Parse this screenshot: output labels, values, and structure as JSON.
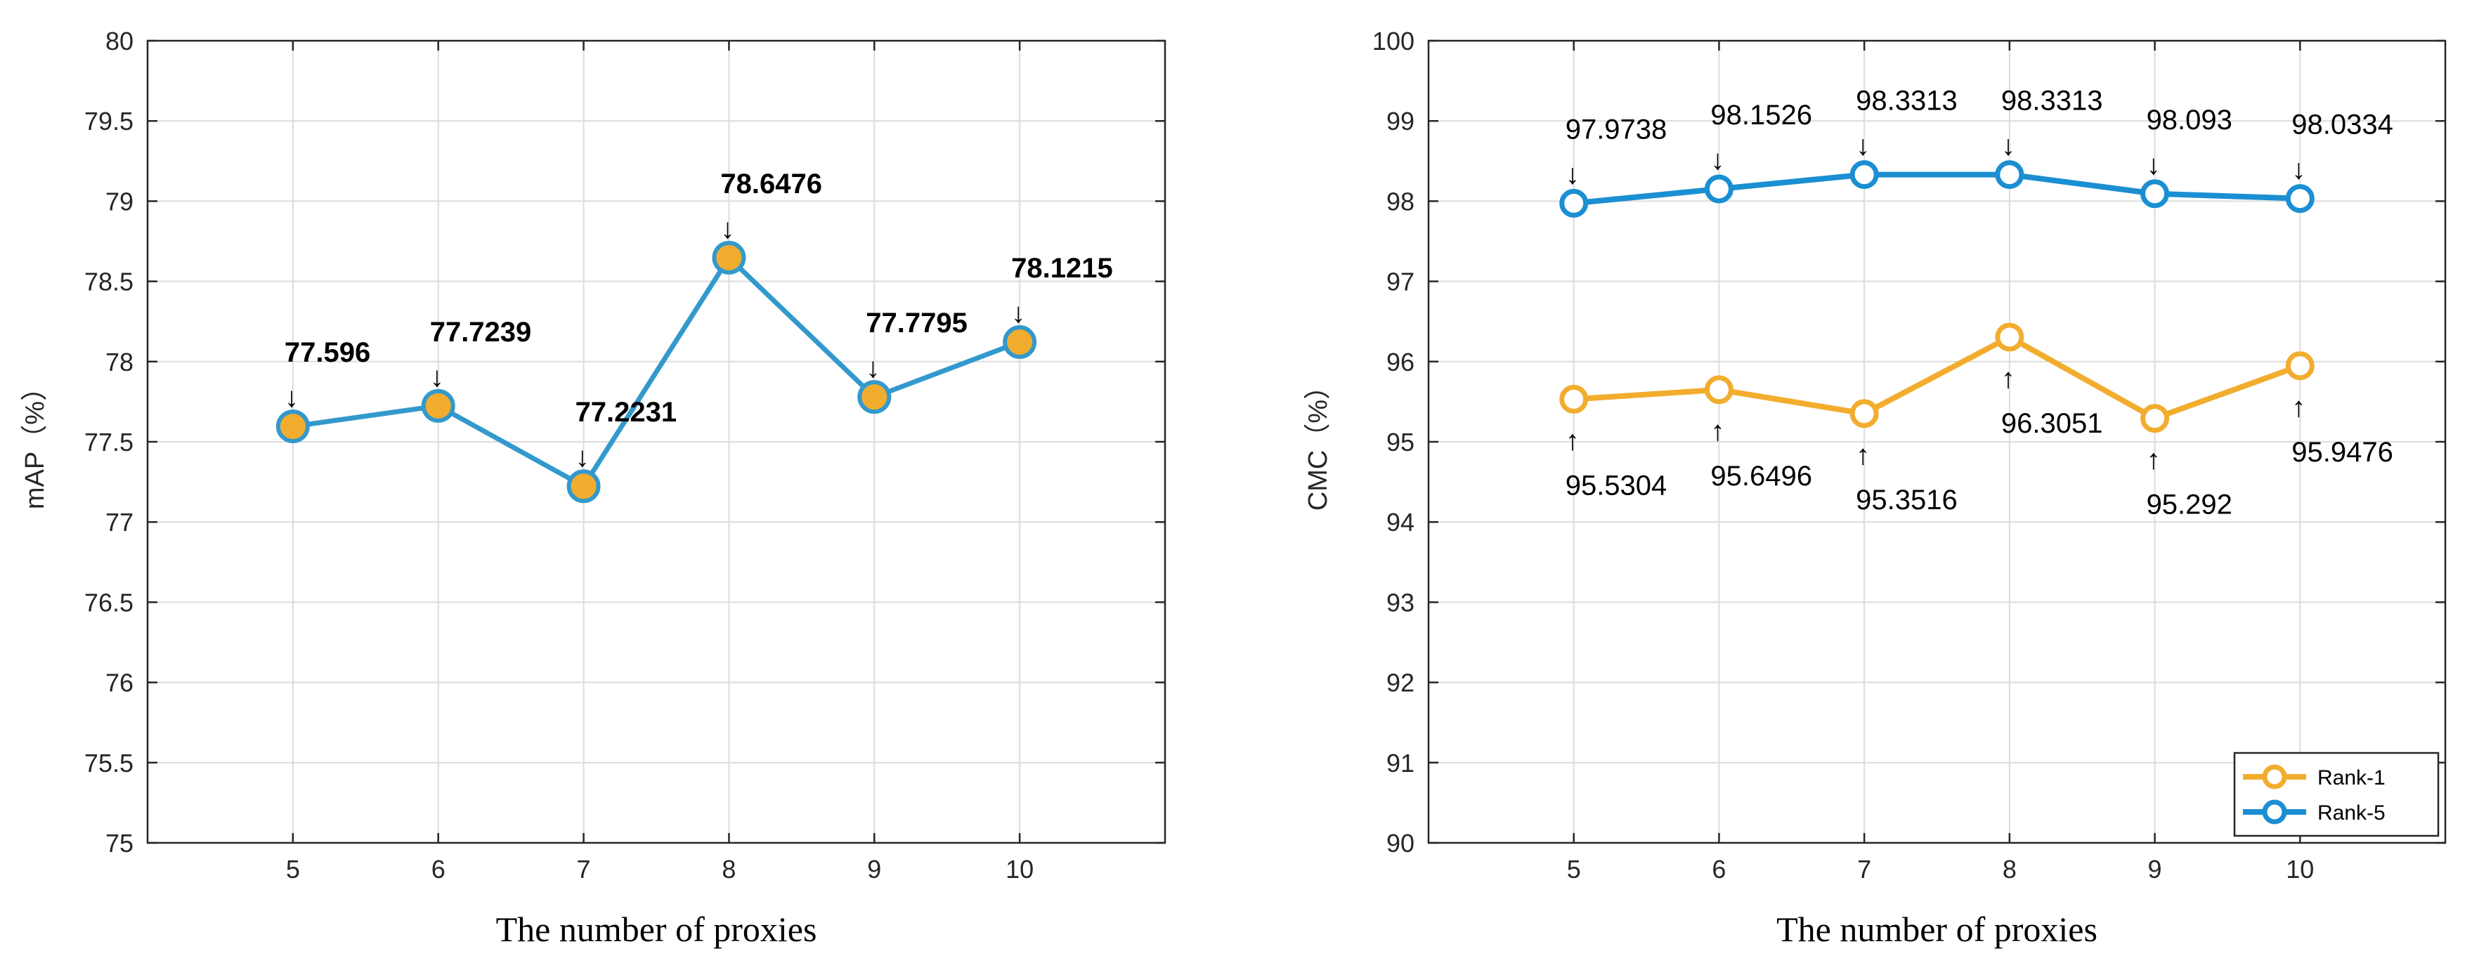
{
  "colors": {
    "blue": "#1b8fd2",
    "blue_line": "#3399cc",
    "orange": "#f2ad2e",
    "grid": "#dcdcdc",
    "axis": "#262626"
  },
  "chart_data": [
    {
      "type": "line",
      "xlabel": "The number of proxies",
      "ylabel": "mAP（%）",
      "xlim": [
        4,
        11
      ],
      "ylim": [
        75,
        80
      ],
      "grid": true,
      "x_ticks": [
        5,
        6,
        7,
        8,
        9,
        10
      ],
      "x_tick_labels": [
        "5",
        "6",
        "7",
        "8",
        "9",
        "10"
      ],
      "y_ticks": [
        75,
        75.5,
        76,
        76.5,
        77,
        77.5,
        78,
        78.5,
        79,
        79.5,
        80
      ],
      "y_tick_labels": [
        "75",
        "75.5",
        "76",
        "76.5",
        "77",
        "77.5",
        "78",
        "78.5",
        "79",
        "79.5",
        "80"
      ],
      "series": [
        {
          "name": "mAP",
          "x": [
            5,
            6,
            7,
            8,
            9,
            10
          ],
          "values": [
            77.596,
            77.7239,
            77.2231,
            78.6476,
            77.7795,
            78.1215
          ],
          "labels": [
            "77.596",
            "77.7239",
            "77.2231",
            "78.6476",
            "77.7795",
            "78.1215"
          ],
          "label_position": "above",
          "arrow": "↓",
          "label_weight": "bold",
          "line_color": "#3399cc",
          "marker_fill": "#f2ad2e",
          "marker_edge": "#3399cc"
        }
      ]
    },
    {
      "type": "line",
      "xlabel": "The number of proxies",
      "ylabel": "CMC（%）",
      "xlim": [
        4,
        11
      ],
      "ylim": [
        90,
        100
      ],
      "grid": true,
      "legend_position": "bottom-right",
      "x_ticks": [
        5,
        6,
        7,
        8,
        9,
        10
      ],
      "x_tick_labels": [
        "5",
        "6",
        "7",
        "8",
        "9",
        "10"
      ],
      "y_ticks": [
        90,
        91,
        92,
        93,
        94,
        95,
        96,
        97,
        98,
        99,
        100
      ],
      "y_tick_labels": [
        "90",
        "91",
        "92",
        "93",
        "94",
        "95",
        "96",
        "97",
        "98",
        "99",
        "100"
      ],
      "series": [
        {
          "name": "Rank-1",
          "x": [
            5,
            6,
            7,
            8,
            9,
            10
          ],
          "values": [
            95.5304,
            95.6496,
            95.3516,
            96.3051,
            95.292,
            95.9476
          ],
          "labels": [
            "95.5304",
            "95.6496",
            "95.3516",
            "96.3051",
            "95.292",
            "95.9476"
          ],
          "label_position": "below",
          "arrow": "↑",
          "label_weight": "normal",
          "line_color": "#f2ad2e",
          "marker_fill": "#ffffff",
          "marker_edge": "#f2ad2e"
        },
        {
          "name": "Rank-5",
          "x": [
            5,
            6,
            7,
            8,
            9,
            10
          ],
          "values": [
            97.9738,
            98.1526,
            98.3313,
            98.3313,
            98.093,
            98.0334
          ],
          "labels": [
            "97.9738",
            "98.1526",
            "98.3313",
            "98.3313",
            "98.093",
            "98.0334"
          ],
          "label_position": "above",
          "arrow": "↓",
          "label_weight": "normal",
          "line_color": "#1b8fd2",
          "marker_fill": "#ffffff",
          "marker_edge": "#1b8fd2"
        }
      ]
    }
  ]
}
